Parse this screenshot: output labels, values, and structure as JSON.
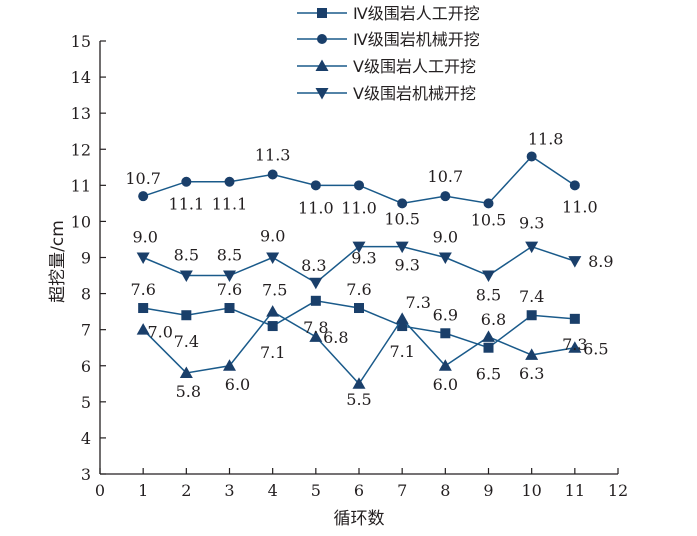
{
  "chart_data": {
    "type": "line",
    "xlabel": "循环数",
    "ylabel": "超挖量/cm",
    "xlim": [
      0,
      12
    ],
    "ylim": [
      3,
      15
    ],
    "x_ticks": [
      "0",
      "1",
      "2",
      "3",
      "4",
      "5",
      "6",
      "7",
      "8",
      "9",
      "10",
      "11",
      "12"
    ],
    "y_ticks": [
      "3",
      "4",
      "5",
      "6",
      "7",
      "8",
      "9",
      "10",
      "11",
      "12",
      "13",
      "14",
      "15"
    ],
    "grid": false,
    "legend_position": "top",
    "line_color": "#1a5a8a",
    "marker_color": "#1a3f6a",
    "x": [
      1,
      2,
      3,
      4,
      5,
      6,
      7,
      8,
      9,
      10,
      11
    ],
    "series": [
      {
        "name": "Ⅳ级围岩人工开挖",
        "marker": "square",
        "values": [
          7.6,
          7.4,
          7.6,
          7.1,
          7.8,
          7.6,
          7.1,
          6.9,
          6.5,
          7.4,
          7.3
        ],
        "labels": [
          "7.6",
          "7.4",
          "7.6",
          "7.1",
          "7.8",
          "7.6",
          "7.1",
          "6.9",
          "6.5",
          "7.4",
          "7.3"
        ]
      },
      {
        "name": "Ⅳ级围岩机械开挖",
        "marker": "circle",
        "values": [
          10.7,
          11.1,
          11.1,
          11.3,
          11.0,
          11.0,
          10.5,
          10.7,
          10.5,
          11.8,
          11.0
        ],
        "labels": [
          "10.7",
          "11.1",
          "11.1",
          "11.3",
          "11.0",
          "11.0",
          "10.5",
          "10.7",
          "10.5",
          "11.8",
          "11.0"
        ]
      },
      {
        "name": "Ⅴ级围岩人工开挖",
        "marker": "triangle-up",
        "values": [
          7.0,
          5.8,
          6.0,
          7.5,
          6.8,
          5.5,
          7.3,
          6.0,
          6.8,
          6.3,
          6.5
        ],
        "labels": [
          "7.0",
          "5.8",
          "6.0",
          "7.5",
          "6.8",
          "5.5",
          "7.3",
          "6.0",
          "6.8",
          "6.3",
          "6.5"
        ]
      },
      {
        "name": "Ⅴ级围岩机械开挖",
        "marker": "triangle-down",
        "values": [
          9.0,
          8.5,
          8.5,
          9.0,
          8.3,
          9.3,
          9.3,
          9.0,
          8.5,
          9.3,
          8.9
        ],
        "labels": [
          "9.0",
          "8.5",
          "8.5",
          "9.0",
          "8.3",
          "9.3",
          "9.3",
          "9.0",
          "8.5",
          "9.3",
          "8.9"
        ]
      }
    ]
  }
}
